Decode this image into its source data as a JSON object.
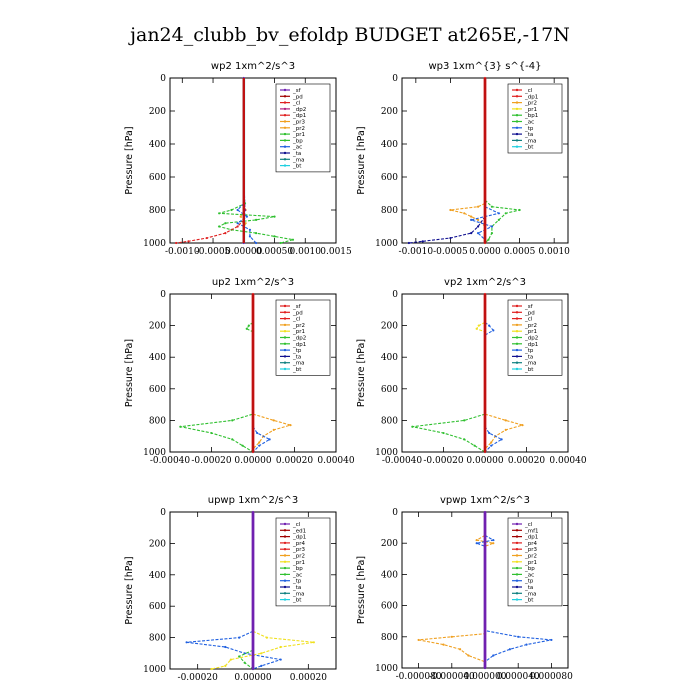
{
  "title": "jan24_clubb_bv_efoldp  BUDGET at265E,-17N",
  "colors": {
    "red": "#e02020",
    "dark_red": "#a00000",
    "purple": "#7020b0",
    "orange": "#f0a020",
    "yellow": "#f0e020",
    "green": "#30c030",
    "blue": "#2060e0",
    "teal": "#108080",
    "navy": "#101090",
    "cyan": "#20d0e0",
    "lime": "#80e020",
    "magenta": "#b02080"
  },
  "chart_data": [
    {
      "type": "line",
      "title": "wp2   1xm^2/s^3",
      "ylabel": "Pressure [hPa]",
      "ylim": [
        1000,
        0
      ],
      "xlim": [
        -0.0012,
        0.0015
      ],
      "xticks": [
        "-0.0010",
        "-0.0005",
        "0.00000",
        "0.00050",
        "0.0010",
        "0.0015"
      ],
      "xtick_values": [
        -0.001,
        -0.0005,
        0.0,
        0.0005,
        0.001,
        0.0015
      ],
      "yticks": [
        0,
        200,
        400,
        600,
        800,
        1000
      ],
      "legend": [
        "_sf",
        "_pd",
        "_cl",
        "_dp2",
        "_dp1",
        "_pr3",
        "_pr2",
        "_pr1",
        "_bp",
        "_ac",
        "_ta",
        "_ma",
        "_bt"
      ],
      "legend_colors": [
        "#7020b0",
        "#a00000",
        "#e02020",
        "#b02080",
        "#e02020",
        "#f0a020",
        "#f0a020",
        "#30c030",
        "#30c030",
        "#2060e0",
        "#101090",
        "#108080",
        "#20d0e0"
      ],
      "series": [
        {
          "name": "_pr1",
          "color": "#30c030",
          "pressure": [
            700,
            760,
            800,
            820,
            840,
            860,
            880,
            900,
            920,
            940,
            960,
            980,
            1000
          ],
          "values": [
            0,
            2e-05,
            -0.0002,
            -0.0004,
            0.0005,
            0.0002,
            -0.0003,
            -0.0004,
            -0.0002,
            0.0002,
            0.0005,
            0.0008,
            0.0006
          ]
        },
        {
          "name": "_bp",
          "color": "#2060e0",
          "pressure": [
            760,
            800,
            840,
            880,
            920,
            960,
            1000
          ],
          "values": [
            0,
            -0.0001,
            5e-05,
            -0.0001,
            0.0001,
            0.0001,
            0.0002
          ]
        },
        {
          "name": "_dp1",
          "color": "#e02020",
          "pressure": [
            860,
            900,
            940,
            970,
            990,
            1000
          ],
          "values": [
            0,
            -0.0001,
            -0.0003,
            -0.0006,
            -0.0009,
            -0.0011
          ]
        },
        {
          "name": "_pr2",
          "color": "#f0a020",
          "pressure": [
            760,
            800,
            840,
            880,
            920
          ],
          "values": [
            0,
            3e-05,
            -5e-05,
            3e-05,
            0
          ]
        },
        {
          "name": "_bt",
          "color": "#20d0e0",
          "pressure": [
            0,
            400,
            800,
            1000
          ],
          "values": [
            0,
            0,
            0,
            0
          ]
        },
        {
          "name": "_sf",
          "color": "#7020b0",
          "pressure": [
            0,
            200,
            400,
            600,
            800,
            900,
            1000
          ],
          "values": [
            0,
            0,
            0,
            0,
            2e-05,
            0,
            0
          ]
        }
      ]
    },
    {
      "type": "line",
      "title": "wp3   1xm^{3} s^{-4}",
      "ylabel": "Pressure [hPa]",
      "ylim": [
        1000,
        0
      ],
      "xlim": [
        -0.0012,
        0.0012
      ],
      "xticks": [
        "-0.0010",
        "-0.0005",
        "0.0000",
        "0.0005",
        "0.0010"
      ],
      "xtick_values": [
        -0.001,
        -0.0005,
        0.0,
        0.0005,
        0.001
      ],
      "yticks": [
        0,
        200,
        400,
        600,
        800,
        1000
      ],
      "legend": [
        "_cl",
        "_dp1",
        "_pr2",
        "_pr1",
        "_bp1",
        "_ac",
        "_tp",
        "_ta",
        "_ma",
        "_bt"
      ],
      "legend_colors": [
        "#e02020",
        "#e02020",
        "#f0a020",
        "#f0e020",
        "#30c030",
        "#30c030",
        "#2060e0",
        "#101090",
        "#108080",
        "#20d0e0"
      ],
      "series": [
        {
          "name": "_ac",
          "color": "#30c030",
          "pressure": [
            740,
            780,
            800,
            820,
            860,
            900,
            940,
            980,
            1000
          ],
          "values": [
            0,
            0.0001,
            0.0005,
            0.0003,
            0.0002,
            0.0001,
            0.0001,
            5e-05,
            0
          ]
        },
        {
          "name": "_pr2",
          "color": "#f0a020",
          "pressure": [
            760,
            780,
            800,
            820,
            840,
            860,
            900
          ],
          "values": [
            0,
            -0.0001,
            -0.0005,
            -0.0003,
            -0.0002,
            -0.0001,
            0
          ]
        },
        {
          "name": "_ta",
          "color": "#101090",
          "pressure": [
            840,
            900,
            940,
            970,
            990,
            1000
          ],
          "values": [
            0,
            -0.0001,
            -0.0002,
            -0.0005,
            -0.0009,
            -0.0011
          ]
        },
        {
          "name": "_tp",
          "color": "#2060e0",
          "pressure": [
            780,
            820,
            860,
            900,
            940,
            980
          ],
          "values": [
            0,
            0.0002,
            -0.0002,
            0.0001,
            -0.0001,
            0
          ]
        },
        {
          "name": "_cl",
          "color": "#e02020",
          "pressure": [
            0,
            500,
            1000
          ],
          "values": [
            0,
            0,
            0
          ]
        }
      ]
    },
    {
      "type": "line",
      "title": "up2   1xm^2/s^3",
      "ylabel": "Pressure [hPa]",
      "ylim": [
        1000,
        0
      ],
      "xlim": [
        -0.0004,
        0.0004
      ],
      "xticks": [
        "-0.00040",
        "-0.00020",
        "0.00000",
        "0.00020",
        "0.00040"
      ],
      "xtick_values": [
        -0.0004,
        -0.0002,
        0.0,
        0.0002,
        0.0004
      ],
      "yticks": [
        0,
        200,
        400,
        600,
        800,
        1000
      ],
      "legend": [
        "_sf",
        "_pd",
        "_cl",
        "_pr2",
        "_pr1",
        "_dp2",
        "_dp1",
        "_tp",
        "_ta",
        "_ma",
        "_bt"
      ],
      "legend_colors": [
        "#e02020",
        "#e02020",
        "#e02020",
        "#f0a020",
        "#f0e020",
        "#30c030",
        "#30c030",
        "#2060e0",
        "#101090",
        "#108080",
        "#20d0e0"
      ],
      "series": [
        {
          "name": "_dp2",
          "color": "#30c030",
          "pressure": [
            180,
            200,
            220,
            240,
            760,
            800,
            840,
            880,
            920,
            960,
            1000
          ],
          "values": [
            0,
            -2e-05,
            -3e-05,
            0,
            0,
            -0.0001,
            -0.00035,
            -0.0002,
            -0.0001,
            -5e-05,
            0
          ]
        },
        {
          "name": "_pr2",
          "color": "#f0a020",
          "pressure": [
            760,
            800,
            830,
            860,
            900,
            940,
            980
          ],
          "values": [
            0,
            0.0001,
            0.00018,
            0.0001,
            5e-05,
            3e-05,
            0
          ]
        },
        {
          "name": "_tp",
          "color": "#2060e0",
          "pressure": [
            840,
            880,
            920,
            960,
            1000
          ],
          "values": [
            0,
            2e-05,
            8e-05,
            3e-05,
            0
          ]
        },
        {
          "name": "_pd",
          "color": "#e02020",
          "pressure": [
            0,
            500,
            1000
          ],
          "values": [
            0,
            0,
            0
          ]
        }
      ]
    },
    {
      "type": "line",
      "title": "vp2   1xm^2/s^3",
      "ylabel": "Pressure [hPa]",
      "ylim": [
        1000,
        0
      ],
      "xlim": [
        -0.0004,
        0.0004
      ],
      "xticks": [
        "-0.00040",
        "-0.00020",
        "0.00000",
        "0.00020",
        "0.00040"
      ],
      "xtick_values": [
        -0.0004,
        -0.0002,
        0.0,
        0.0002,
        0.0004
      ],
      "yticks": [
        0,
        200,
        400,
        600,
        800,
        1000
      ],
      "legend": [
        "_sf",
        "_pd",
        "_cl",
        "_pr2",
        "_pr1",
        "_dp2",
        "_dp1",
        "_tp",
        "_ta",
        "_ma",
        "_bt"
      ],
      "legend_colors": [
        "#e02020",
        "#e02020",
        "#e02020",
        "#f0a020",
        "#f0e020",
        "#30c030",
        "#30c030",
        "#2060e0",
        "#101090",
        "#108080",
        "#20d0e0"
      ],
      "series": [
        {
          "name": "_dp2",
          "color": "#30c030",
          "pressure": [
            760,
            800,
            840,
            880,
            920,
            960,
            1000
          ],
          "values": [
            0,
            -0.0001,
            -0.00035,
            -0.0002,
            -0.0001,
            -5e-05,
            0
          ]
        },
        {
          "name": "_pr1",
          "color": "#f0e020",
          "pressure": [
            180,
            200,
            220,
            240
          ],
          "values": [
            0,
            -3e-05,
            -4e-05,
            0
          ]
        },
        {
          "name": "_pr2",
          "color": "#f0a020",
          "pressure": [
            760,
            800,
            830,
            860,
            900,
            940,
            980
          ],
          "values": [
            0,
            0.0001,
            0.00018,
            0.0001,
            5e-05,
            3e-05,
            0
          ]
        },
        {
          "name": "_tp",
          "color": "#2060e0",
          "pressure": [
            180,
            200,
            230,
            260,
            840,
            880,
            920,
            960,
            1000
          ],
          "values": [
            0,
            2e-05,
            4e-05,
            0,
            0,
            2e-05,
            8e-05,
            3e-05,
            0
          ]
        },
        {
          "name": "_pd",
          "color": "#e02020",
          "pressure": [
            0,
            500,
            1000
          ],
          "values": [
            0,
            0,
            0
          ]
        }
      ]
    },
    {
      "type": "line",
      "title": "upwp   1xm^2/s^3",
      "ylabel": "Pressure [hPa]",
      "ylim": [
        1000,
        0
      ],
      "xlim": [
        -0.0003,
        0.0003
      ],
      "xticks": [
        "-0.00020",
        "0.00000",
        "0.00020"
      ],
      "xtick_values": [
        -0.0002,
        0.0,
        0.0002
      ],
      "yticks": [
        0,
        200,
        400,
        600,
        800,
        1000
      ],
      "legend": [
        "_cl",
        "_ed1",
        "_dp1",
        "_pr4",
        "_pr3",
        "_pr2",
        "_pr1",
        "_bp",
        "_ac",
        "_tp",
        "_ta",
        "_ma",
        "_bt"
      ],
      "legend_colors": [
        "#7020b0",
        "#a00000",
        "#a00000",
        "#e02020",
        "#e02020",
        "#f0a020",
        "#f0e020",
        "#30c030",
        "#30c030",
        "#2060e0",
        "#101090",
        "#108080",
        "#20d0e0"
      ],
      "series": [
        {
          "name": "_tp",
          "color": "#2060e0",
          "pressure": [
            760,
            800,
            830,
            860,
            900,
            940,
            980,
            1000
          ],
          "values": [
            0,
            -5e-05,
            -0.00024,
            -0.0001,
            -3e-05,
            0.0001,
            3e-05,
            0
          ]
        },
        {
          "name": "_pr1",
          "color": "#f0e020",
          "pressure": [
            760,
            800,
            830,
            860,
            900,
            940,
            980,
            1000
          ],
          "values": [
            0,
            5e-05,
            0.00022,
            0.0001,
            3e-05,
            -8e-05,
            -0.0001,
            -0.00015
          ]
        },
        {
          "name": "_bp",
          "color": "#30c030",
          "pressure": [
            880,
            920,
            960,
            1000
          ],
          "values": [
            0,
            -5e-05,
            -3e-05,
            0
          ]
        },
        {
          "name": "_cl",
          "color": "#7020b0",
          "pressure": [
            0,
            500,
            1000
          ],
          "values": [
            0,
            0,
            0
          ]
        }
      ]
    },
    {
      "type": "line",
      "title": "vpwp   1xm^2/s^3",
      "ylabel": "Pressure [hPa]",
      "ylim": [
        1000,
        0
      ],
      "xlim": [
        -0.0001,
        0.0001
      ],
      "xticks": [
        "-0.000080",
        "-0.000040",
        "0.000000",
        "0.000040",
        "0.000080"
      ],
      "xtick_values": [
        -8e-05,
        -4e-05,
        0.0,
        4e-05,
        8e-05
      ],
      "yticks": [
        0,
        200,
        400,
        600,
        800,
        1000
      ],
      "legend": [
        "_cl",
        "_mf1",
        "_dp1",
        "_pr4",
        "_pr3",
        "_pr2",
        "_pr1",
        "_bp",
        "_ac",
        "_tp",
        "_ta",
        "_ma",
        "_bt"
      ],
      "legend_colors": [
        "#7020b0",
        "#a00000",
        "#a00000",
        "#e02020",
        "#e02020",
        "#f0a020",
        "#f0e020",
        "#30c030",
        "#30c030",
        "#2060e0",
        "#101090",
        "#108080",
        "#20d0e0"
      ],
      "series": [
        {
          "name": "_pr2",
          "color": "#f0a020",
          "pressure": [
            150,
            180,
            200,
            220,
            780,
            800,
            820,
            850,
            880,
            920,
            960,
            1000
          ],
          "values": [
            0,
            -1e-05,
            1e-05,
            0,
            0,
            -4e-05,
            -8e-05,
            -5e-05,
            -3e-05,
            -2e-05,
            0,
            0
          ]
        },
        {
          "name": "_tp",
          "color": "#2060e0",
          "pressure": [
            150,
            180,
            200,
            220,
            760,
            800,
            820,
            850,
            880,
            920,
            960,
            1000
          ],
          "values": [
            0,
            1e-05,
            -1e-05,
            0,
            0,
            4e-05,
            8e-05,
            5e-05,
            3e-05,
            1e-05,
            0,
            0
          ]
        },
        {
          "name": "_cl",
          "color": "#7020b0",
          "pressure": [
            0,
            500,
            1000
          ],
          "values": [
            0,
            0,
            0
          ]
        }
      ]
    }
  ]
}
